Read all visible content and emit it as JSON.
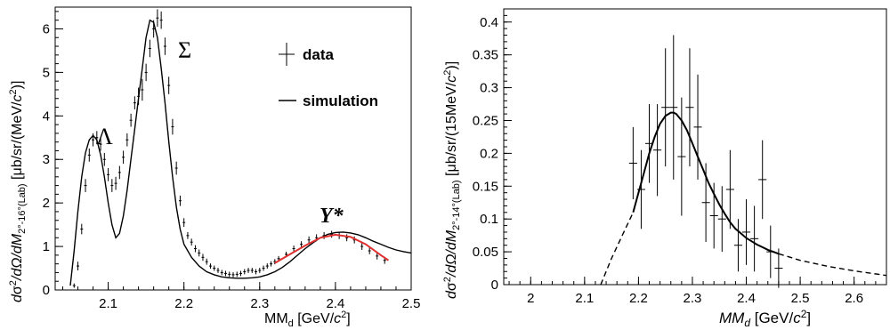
{
  "chart_data": [
    {
      "type": "line",
      "xlim": [
        2.03,
        2.5
      ],
      "ylim": [
        0,
        6.5
      ],
      "x_ticks": [
        "2.1",
        "2.2",
        "2.3",
        "2.4",
        "2.5"
      ],
      "y_ticks": [
        "0",
        "1",
        "2",
        "3",
        "4",
        "5",
        "6"
      ],
      "xlabel": {
        "main": "MM",
        "sub": "d",
        "post": " [GeV/",
        "italic": "c",
        "sup": "2",
        "end": "]"
      },
      "ylabel": {
        "a": "d",
        "sig": "σ",
        "sup2": "2",
        "b": "/dΩ/dM",
        "sub": "2°-16°(Lab)",
        "c": " [μb/sr/(MeV/",
        "ital": "c",
        "sup": "2",
        "d": ")]"
      },
      "annotations": {
        "lambda": "Λ",
        "sigma": "Σ",
        "ystar": "Y*"
      },
      "legend": {
        "position": "top-right",
        "entries": [
          "data",
          "simulation"
        ]
      },
      "series": [
        {
          "name": "data",
          "style": "points-with-errors",
          "color": "#000000",
          "x": [
            2.055,
            2.06,
            2.065,
            2.07,
            2.075,
            2.08,
            2.085,
            2.09,
            2.095,
            2.1,
            2.105,
            2.11,
            2.115,
            2.12,
            2.125,
            2.13,
            2.135,
            2.14,
            2.145,
            2.15,
            2.155,
            2.16,
            2.165,
            2.17,
            2.175,
            2.18,
            2.185,
            2.19,
            2.195,
            2.2,
            2.205,
            2.21,
            2.215,
            2.22,
            2.225,
            2.23,
            2.235,
            2.24,
            2.245,
            2.25,
            2.255,
            2.26,
            2.265,
            2.27,
            2.275,
            2.28,
            2.285,
            2.29,
            2.295,
            2.3,
            2.305,
            2.31,
            2.315,
            2.32
          ],
          "y": [
            0.1,
            0.55,
            1.4,
            2.4,
            3.1,
            3.45,
            3.5,
            3.35,
            3.0,
            2.65,
            2.4,
            2.45,
            2.7,
            3.05,
            3.45,
            3.9,
            4.3,
            4.45,
            4.6,
            5.0,
            5.55,
            6.0,
            6.25,
            6.2,
            5.6,
            4.7,
            3.75,
            2.8,
            2.05,
            1.55,
            1.25,
            1.1,
            0.95,
            0.85,
            0.75,
            0.65,
            0.55,
            0.5,
            0.45,
            0.4,
            0.38,
            0.36,
            0.35,
            0.36,
            0.38,
            0.42,
            0.45,
            0.45,
            0.42,
            0.45,
            0.5,
            0.55,
            0.6,
            0.65
          ],
          "err": [
            0.05,
            0.1,
            0.12,
            0.15,
            0.15,
            0.15,
            0.15,
            0.15,
            0.15,
            0.15,
            0.15,
            0.15,
            0.15,
            0.15,
            0.15,
            0.15,
            0.15,
            0.2,
            0.25,
            0.2,
            0.2,
            0.2,
            0.2,
            0.2,
            0.2,
            0.2,
            0.18,
            0.15,
            0.12,
            0.1,
            0.08,
            0.08,
            0.08,
            0.08,
            0.08,
            0.07,
            0.06,
            0.06,
            0.06,
            0.06,
            0.06,
            0.06,
            0.06,
            0.06,
            0.06,
            0.06,
            0.06,
            0.06,
            0.06,
            0.06,
            0.06,
            0.06,
            0.06,
            0.06
          ]
        },
        {
          "name": "data-tail",
          "style": "points-with-errors",
          "color": "#000000",
          "x": [
            2.325,
            2.335,
            2.345,
            2.355,
            2.365,
            2.375,
            2.385,
            2.395,
            2.405,
            2.415,
            2.425,
            2.435,
            2.445,
            2.455,
            2.465
          ],
          "y": [
            0.72,
            0.82,
            0.95,
            1.05,
            1.15,
            1.2,
            1.25,
            1.28,
            1.25,
            1.2,
            1.15,
            1.0,
            0.9,
            0.78,
            0.68
          ],
          "err": [
            0.06,
            0.06,
            0.07,
            0.07,
            0.08,
            0.08,
            0.08,
            0.08,
            0.08,
            0.08,
            0.08,
            0.08,
            0.08,
            0.08,
            0.08
          ]
        },
        {
          "name": "simulation",
          "style": "line",
          "color": "#000000",
          "x": [
            2.05,
            2.055,
            2.06,
            2.065,
            2.07,
            2.075,
            2.08,
            2.085,
            2.09,
            2.095,
            2.1,
            2.105,
            2.11,
            2.115,
            2.12,
            2.125,
            2.13,
            2.135,
            2.14,
            2.145,
            2.15,
            2.155,
            2.16,
            2.165,
            2.17,
            2.175,
            2.18,
            2.185,
            2.19,
            2.195,
            2.2,
            2.21,
            2.22,
            2.23,
            2.24,
            2.25,
            2.26,
            2.27,
            2.28,
            2.29,
            2.3,
            2.31,
            2.32,
            2.33,
            2.34,
            2.35,
            2.36,
            2.37,
            2.38,
            2.39,
            2.4,
            2.41,
            2.42,
            2.43,
            2.44,
            2.45,
            2.46,
            2.47,
            2.48,
            2.49,
            2.5
          ],
          "y": [
            0.1,
            0.9,
            1.8,
            2.6,
            3.15,
            3.45,
            3.55,
            3.45,
            3.1,
            2.6,
            2.0,
            1.5,
            1.2,
            1.3,
            1.7,
            2.3,
            3.0,
            3.7,
            4.4,
            5.1,
            5.8,
            6.2,
            6.15,
            5.8,
            5.1,
            4.3,
            3.4,
            2.6,
            1.9,
            1.4,
            1.05,
            0.75,
            0.55,
            0.42,
            0.35,
            0.3,
            0.28,
            0.27,
            0.27,
            0.28,
            0.3,
            0.35,
            0.42,
            0.52,
            0.65,
            0.8,
            0.95,
            1.08,
            1.2,
            1.28,
            1.32,
            1.33,
            1.31,
            1.27,
            1.2,
            1.12,
            1.05,
            0.98,
            0.92,
            0.88,
            0.85
          ]
        },
        {
          "name": "fit",
          "style": "line",
          "color": "#e03030",
          "x": [
            2.32,
            2.34,
            2.36,
            2.38,
            2.4,
            2.42,
            2.44,
            2.46,
            2.47
          ],
          "y": [
            0.62,
            0.82,
            1.02,
            1.2,
            1.27,
            1.22,
            1.05,
            0.8,
            0.68
          ]
        }
      ]
    },
    {
      "type": "scatter",
      "xlim": [
        1.95,
        2.66
      ],
      "ylim": [
        0,
        0.42
      ],
      "x_ticks": [
        "2",
        "2.1",
        "2.2",
        "2.3",
        "2.4",
        "2.5",
        "2.6"
      ],
      "y_ticks": [
        "0",
        "0.05",
        "0.1",
        "0.15",
        "0.2",
        "0.25",
        "0.3",
        "0.35",
        "0.4"
      ],
      "xlabel": {
        "main": "MM",
        "sub": "d",
        "post": " [GeV/",
        "italic": "c",
        "sup": "2",
        "end": "]"
      },
      "ylabel": {
        "a": "d",
        "sig": "σ",
        "sup2": "2",
        "b": "/dΩ/dM",
        "sub": "2°-14°(Lab)",
        "c": " [μb/sr/(15MeV/",
        "ital": "c",
        "sup": "2",
        "d": ")]"
      },
      "series": [
        {
          "name": "data",
          "style": "points-with-xy-errors",
          "color": "#000000",
          "x": [
            2.19,
            2.205,
            2.22,
            2.235,
            2.25,
            2.265,
            2.28,
            2.295,
            2.31,
            2.325,
            2.34,
            2.355,
            2.37,
            2.385,
            2.4,
            2.415,
            2.43,
            2.445,
            2.46
          ],
          "y": [
            0.185,
            0.145,
            0.215,
            0.205,
            0.27,
            0.27,
            0.195,
            0.27,
            0.24,
            0.125,
            0.105,
            0.1,
            0.145,
            0.06,
            0.08,
            0.07,
            0.16,
            0.05,
            0.025
          ],
          "err": [
            0.055,
            0.06,
            0.06,
            0.07,
            0.09,
            0.11,
            0.09,
            0.09,
            0.08,
            0.06,
            0.05,
            0.05,
            0.06,
            0.04,
            0.05,
            0.05,
            0.06,
            0.04,
            0.03
          ],
          "xerr": 0.0075
        },
        {
          "name": "fit",
          "style": "line",
          "color": "#000000",
          "x": [
            2.19,
            2.2,
            2.21,
            2.22,
            2.23,
            2.24,
            2.25,
            2.26,
            2.265,
            2.27,
            2.28,
            2.29,
            2.3,
            2.31,
            2.32,
            2.33,
            2.34,
            2.35,
            2.36,
            2.37,
            2.38,
            2.39,
            2.4,
            2.41,
            2.42,
            2.43,
            2.44,
            2.45,
            2.46
          ],
          "y": [
            0.11,
            0.14,
            0.17,
            0.2,
            0.225,
            0.245,
            0.257,
            0.262,
            0.262,
            0.26,
            0.25,
            0.235,
            0.215,
            0.195,
            0.175,
            0.155,
            0.138,
            0.122,
            0.108,
            0.095,
            0.085,
            0.078,
            0.071,
            0.066,
            0.061,
            0.057,
            0.053,
            0.05,
            0.047
          ]
        },
        {
          "name": "extrapolation-low",
          "style": "dashed",
          "color": "#000000",
          "x": [
            2.13,
            2.15,
            2.17,
            2.19
          ],
          "y": [
            0.0,
            0.04,
            0.075,
            0.11
          ]
        },
        {
          "name": "extrapolation-high",
          "style": "dashed",
          "color": "#000000",
          "x": [
            2.46,
            2.5,
            2.55,
            2.6,
            2.66
          ],
          "y": [
            0.047,
            0.037,
            0.028,
            0.021,
            0.014
          ]
        }
      ]
    }
  ]
}
